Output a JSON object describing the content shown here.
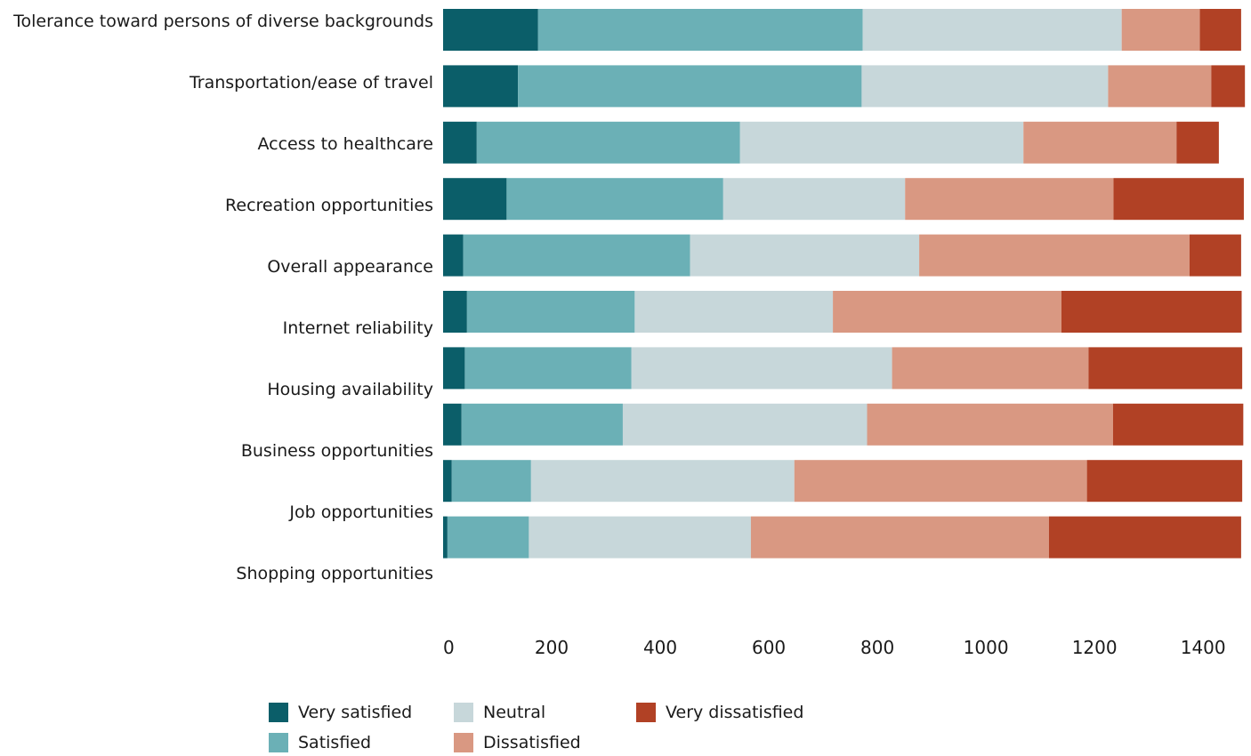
{
  "chart_data": {
    "type": "bar",
    "orientation": "horizontal",
    "stacked": true,
    "categories": [
      "Tolerance toward persons of diverse backgrounds",
      "Transportation/ease of travel",
      "Access to healthcare",
      "Recreation opportunities",
      "Overall appearance",
      "Internet reliability",
      "Housing availability",
      "Business opportunities",
      "Job opportunities",
      "Shopping opportunities"
    ],
    "series": [
      {
        "name": "Very satisfied",
        "color": "#0b5e69",
        "values": [
          175,
          138,
          62,
          117,
          37,
          44,
          40,
          34,
          16,
          8
        ]
      },
      {
        "name": "Satisfied",
        "color": "#6bb0b6",
        "values": [
          598,
          633,
          485,
          399,
          418,
          309,
          307,
          297,
          146,
          150
        ]
      },
      {
        "name": "Neutral",
        "color": "#c7d7da",
        "values": [
          477,
          454,
          522,
          335,
          422,
          365,
          480,
          450,
          485,
          409
        ]
      },
      {
        "name": "Dissatisfied",
        "color": "#d99882",
        "values": [
          144,
          190,
          282,
          384,
          498,
          421,
          362,
          453,
          539,
          549
        ]
      },
      {
        "name": "Very dissatisfied",
        "color": "#b14125",
        "values": [
          76,
          62,
          78,
          240,
          95,
          332,
          283,
          240,
          286,
          354
        ]
      }
    ],
    "xlim": [
      0,
      1480
    ],
    "xticks": [
      0,
      200,
      400,
      600,
      800,
      1000,
      1200,
      1400
    ],
    "xlabel": "",
    "ylabel": "",
    "title": "",
    "grid": false,
    "legend_position": "bottom"
  }
}
